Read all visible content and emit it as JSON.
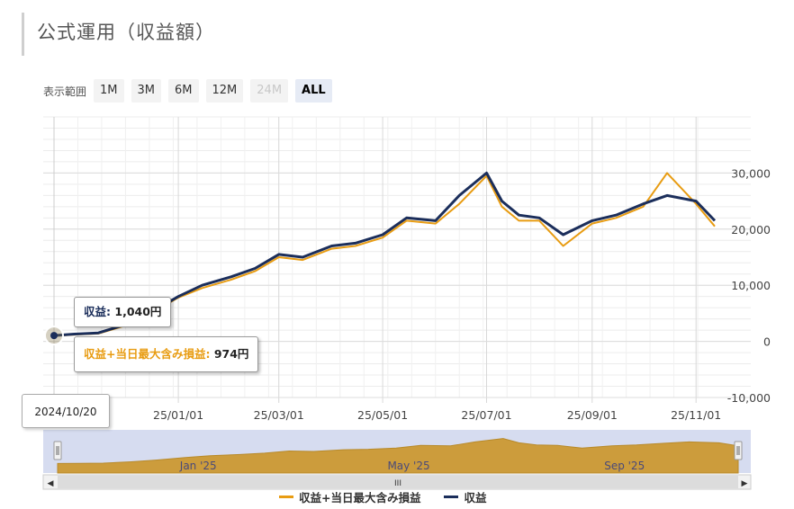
{
  "page": {
    "title": "公式運用（収益額）"
  },
  "range_selector": {
    "label": "表示範囲",
    "buttons": [
      {
        "label": "1M",
        "state": "normal"
      },
      {
        "label": "3M",
        "state": "normal"
      },
      {
        "label": "6M",
        "state": "normal"
      },
      {
        "label": "12M",
        "state": "normal"
      },
      {
        "label": "24M",
        "state": "disabled"
      },
      {
        "label": "ALL",
        "state": "selected"
      }
    ]
  },
  "tooltip": {
    "profit_label": "収益",
    "profit_value": "1,040円",
    "total_label": "収益+当日最大含み損益",
    "total_value": "974円",
    "date": "2024/10/20"
  },
  "colors": {
    "profit": "#1b2e5b",
    "total": "#e89c12",
    "navigator_fill": "#cc9c3c",
    "navigator_bg": "#d6dcf0"
  },
  "chart_data": {
    "type": "line",
    "x_range": [
      "2024-10-20",
      "2025-11-12"
    ],
    "ylim": [
      -10000,
      40000
    ],
    "y_ticks": [
      {
        "value": 30000,
        "label": "30,000"
      },
      {
        "value": 20000,
        "label": "20,000"
      },
      {
        "value": 10000,
        "label": "10,000"
      },
      {
        "value": 0,
        "label": "0"
      },
      {
        "value": -10000,
        "label": "-10,000"
      }
    ],
    "x_ticks": [
      {
        "date": "2025-01-01",
        "label": "25/01/01"
      },
      {
        "date": "2025-03-01",
        "label": "25/03/01"
      },
      {
        "date": "2025-05-01",
        "label": "25/05/01"
      },
      {
        "date": "2025-07-01",
        "label": "25/07/01"
      },
      {
        "date": "2025-09-01",
        "label": "25/09/01"
      },
      {
        "date": "2025-11-01",
        "label": "25/11/01"
      }
    ],
    "navigator_labels": [
      {
        "date": "2025-01-01",
        "label": "Jan '25"
      },
      {
        "date": "2025-05-01",
        "label": "May '25"
      },
      {
        "date": "2025-09-01",
        "label": "Sep '25"
      }
    ],
    "series": [
      {
        "name": "収益",
        "color": "#1b2e5b",
        "points": [
          [
            "2024-10-20",
            1040
          ],
          [
            "2024-11-01",
            1300
          ],
          [
            "2024-11-15",
            1500
          ],
          [
            "2024-12-01",
            3000
          ],
          [
            "2024-12-15",
            5000
          ],
          [
            "2025-01-01",
            8000
          ],
          [
            "2025-01-15",
            10000
          ],
          [
            "2025-02-01",
            11500
          ],
          [
            "2025-02-15",
            13000
          ],
          [
            "2025-03-01",
            15500
          ],
          [
            "2025-03-15",
            15000
          ],
          [
            "2025-04-01",
            17000
          ],
          [
            "2025-04-15",
            17500
          ],
          [
            "2025-05-01",
            19000
          ],
          [
            "2025-05-15",
            22000
          ],
          [
            "2025-06-01",
            21500
          ],
          [
            "2025-06-15",
            26000
          ],
          [
            "2025-07-01",
            30000
          ],
          [
            "2025-07-10",
            25000
          ],
          [
            "2025-07-20",
            22500
          ],
          [
            "2025-08-01",
            22000
          ],
          [
            "2025-08-15",
            19000
          ],
          [
            "2025-09-01",
            21500
          ],
          [
            "2025-09-15",
            22500
          ],
          [
            "2025-10-01",
            24500
          ],
          [
            "2025-10-15",
            26000
          ],
          [
            "2025-11-01",
            25000
          ],
          [
            "2025-11-12",
            21500
          ]
        ]
      },
      {
        "name": "収益+当日最大含み損益",
        "color": "#e89c12",
        "points": [
          [
            "2024-10-20",
            974
          ],
          [
            "2024-11-01",
            1200
          ],
          [
            "2024-11-15",
            1400
          ],
          [
            "2024-12-01",
            2800
          ],
          [
            "2024-12-15",
            4800
          ],
          [
            "2025-01-01",
            7800
          ],
          [
            "2025-01-15",
            9500
          ],
          [
            "2025-02-01",
            11000
          ],
          [
            "2025-02-15",
            12500
          ],
          [
            "2025-03-01",
            15000
          ],
          [
            "2025-03-15",
            14500
          ],
          [
            "2025-04-01",
            16500
          ],
          [
            "2025-04-15",
            17000
          ],
          [
            "2025-05-01",
            18500
          ],
          [
            "2025-05-15",
            21500
          ],
          [
            "2025-06-01",
            21000
          ],
          [
            "2025-06-15",
            24500
          ],
          [
            "2025-07-01",
            29500
          ],
          [
            "2025-07-10",
            24000
          ],
          [
            "2025-07-20",
            21500
          ],
          [
            "2025-08-01",
            21500
          ],
          [
            "2025-08-15",
            17000
          ],
          [
            "2025-09-01",
            21000
          ],
          [
            "2025-09-15",
            22000
          ],
          [
            "2025-10-01",
            24000
          ],
          [
            "2025-10-15",
            30000
          ],
          [
            "2025-11-01",
            24500
          ],
          [
            "2025-11-12",
            20500
          ]
        ]
      }
    ],
    "legend": [
      {
        "name": "収益+当日最大含み損益",
        "color": "#e89c12"
      },
      {
        "name": "収益",
        "color": "#1b2e5b"
      }
    ]
  }
}
